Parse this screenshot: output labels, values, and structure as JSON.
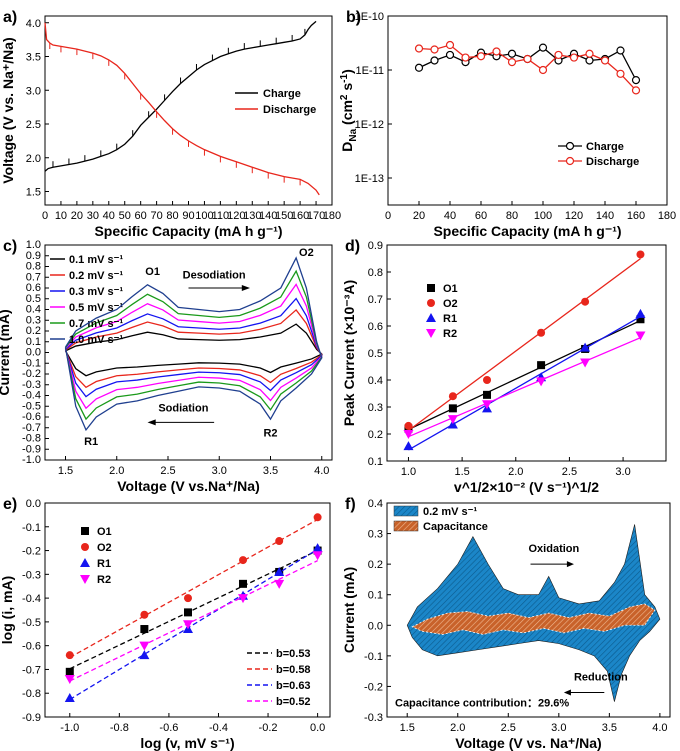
{
  "panels": {
    "a": "a)",
    "b": "b)",
    "c": "c)",
    "d": "d)",
    "e": "e)",
    "f": "f)"
  },
  "colors": {
    "black": "#000000",
    "red": "#e8261c",
    "blue": "#1414f0",
    "magenta": "#ff00ff",
    "green": "#1a9a1a",
    "orange": "#e06a1a",
    "fillblue": "#1b86c8",
    "fillorange": "#c8622a"
  },
  "chart_data": [
    {
      "id": "a",
      "type": "line",
      "xlabel": "Specific Capacity (mA h g⁻¹)",
      "ylabel": "Voltage (V vs. Na⁺/Na)",
      "xlim": [
        0,
        180
      ],
      "ylim": [
        1.3,
        4.1
      ],
      "xticks": [
        "0",
        "10",
        "20",
        "30",
        "40",
        "50",
        "60",
        "70",
        "80",
        "90",
        "100",
        "110",
        "120",
        "130",
        "140",
        "150",
        "160",
        "170",
        "180"
      ],
      "yticks": [
        "1.5",
        "2.0",
        "2.5",
        "3.0",
        "3.5",
        "4.0"
      ],
      "legend": {
        "position": "middle-right"
      },
      "series": [
        {
          "name": "Charge",
          "color": "#000000",
          "x": [
            0,
            2,
            5,
            10,
            15,
            20,
            25,
            30,
            35,
            40,
            45,
            50,
            55,
            60,
            65,
            70,
            75,
            80,
            85,
            90,
            95,
            100,
            105,
            110,
            115,
            120,
            125,
            130,
            135,
            140,
            145,
            150,
            155,
            160,
            163,
            165,
            167,
            170
          ],
          "y": [
            1.8,
            1.84,
            1.86,
            1.88,
            1.9,
            1.92,
            1.95,
            1.98,
            2.02,
            2.06,
            2.12,
            2.2,
            2.32,
            2.48,
            2.6,
            2.72,
            2.85,
            2.98,
            3.1,
            3.2,
            3.3,
            3.38,
            3.44,
            3.5,
            3.54,
            3.58,
            3.61,
            3.63,
            3.65,
            3.67,
            3.69,
            3.71,
            3.73,
            3.76,
            3.82,
            3.9,
            3.96,
            4.02
          ]
        },
        {
          "name": "Discharge",
          "color": "#e8261c",
          "x": [
            0,
            1,
            3,
            5,
            10,
            15,
            20,
            25,
            30,
            35,
            40,
            45,
            50,
            55,
            60,
            65,
            70,
            75,
            80,
            85,
            90,
            95,
            100,
            105,
            110,
            115,
            120,
            125,
            130,
            135,
            140,
            145,
            150,
            155,
            160,
            165,
            170,
            172
          ],
          "y": [
            4.0,
            3.75,
            3.7,
            3.67,
            3.65,
            3.63,
            3.61,
            3.58,
            3.55,
            3.51,
            3.45,
            3.37,
            3.25,
            3.1,
            2.95,
            2.82,
            2.68,
            2.55,
            2.43,
            2.33,
            2.25,
            2.18,
            2.12,
            2.07,
            2.02,
            1.98,
            1.94,
            1.9,
            1.86,
            1.82,
            1.78,
            1.75,
            1.72,
            1.7,
            1.68,
            1.62,
            1.52,
            1.45
          ]
        }
      ]
    },
    {
      "id": "b",
      "type": "line",
      "xlabel": "Specific Capacity (mA h g⁻¹)",
      "ylabel": "D_Na (cm² s⁻¹)",
      "ylabel_main": "D",
      "ylabel_sub": "Na",
      "ylabel_rest": "(cm",
      "ylabel_sup1": "2",
      "ylabel_s": " s",
      "ylabel_sup2": "-1",
      "ylabel_close": ")",
      "scale": "log",
      "xlim": [
        0,
        180
      ],
      "ylim_exp": [
        -13.5,
        -10
      ],
      "xticks": [
        "0",
        "20",
        "40",
        "60",
        "80",
        "100",
        "120",
        "140",
        "160",
        "180"
      ],
      "yticks": [
        "1E-13",
        "1E-12",
        "1E-11",
        "1E-10"
      ],
      "legend": {
        "position": "bottom-right"
      },
      "series": [
        {
          "name": "Charge",
          "color": "#000000",
          "x": [
            20,
            30,
            40,
            50,
            60,
            70,
            80,
            90,
            100,
            110,
            120,
            130,
            140,
            150,
            160
          ],
          "y": [
            1.1e-11,
            1.5e-11,
            1.9e-11,
            1.4e-11,
            2.1e-11,
            1.8e-11,
            2e-11,
            1.6e-11,
            2.6e-11,
            1.5e-11,
            2e-11,
            1.5e-11,
            1.6e-11,
            2.3e-11,
            6.5e-12
          ]
        },
        {
          "name": "Discharge",
          "color": "#e8261c",
          "x": [
            20,
            30,
            40,
            50,
            60,
            70,
            80,
            90,
            100,
            110,
            120,
            130,
            140,
            150,
            160
          ],
          "y": [
            2.5e-11,
            2.4e-11,
            2.9e-11,
            1.7e-11,
            1.8e-11,
            2.2e-11,
            1.4e-11,
            1.6e-11,
            1e-11,
            1.9e-11,
            1.7e-11,
            2e-11,
            1.5e-11,
            8.5e-12,
            4.2e-12
          ]
        }
      ]
    },
    {
      "id": "c",
      "type": "line",
      "xlabel": "Voltage (V vs.Na⁺/Na)",
      "ylabel": "Current (mA)",
      "xlim": [
        1.3,
        4.1
      ],
      "ylim": [
        -1.0,
        1.0
      ],
      "xticks": [
        "1.5",
        "2.0",
        "2.5",
        "3.0",
        "3.5",
        "4.0"
      ],
      "yticks": [
        "-1.0",
        "-0.9",
        "-0.8",
        "-0.7",
        "-0.6",
        "-0.5",
        "-0.4",
        "-0.3",
        "-0.2",
        "-0.1",
        "0.0",
        "0.1",
        "0.2",
        "0.3",
        "0.4",
        "0.5",
        "0.6",
        "0.7",
        "0.8",
        "0.9",
        "1.0"
      ],
      "legend": {
        "position": "top-left"
      },
      "annotations": [
        "O1",
        "O2",
        "R1",
        "R2",
        "Desodiation",
        "Sodiation"
      ],
      "series": [
        {
          "name": "0.1 mV s⁻¹",
          "color": "#000000",
          "scale": 0.3
        },
        {
          "name": "0.2 mV s⁻¹",
          "color": "#e8261c",
          "scale": 0.45
        },
        {
          "name": "0.3 mV s⁻¹",
          "color": "#1414f0",
          "scale": 0.57
        },
        {
          "name": "0.5 mV s⁻¹",
          "color": "#ff00ff",
          "scale": 0.72
        },
        {
          "name": "0.7 mV s⁻¹",
          "color": "#1a9a1a",
          "scale": 0.86
        },
        {
          "name": "1.0 mV s⁻¹",
          "color": "#1f3f8f",
          "scale": 1.0
        }
      ]
    },
    {
      "id": "d",
      "type": "scatter",
      "xlabel": "v^1/2×10⁻² (V s⁻¹)^1/2",
      "ylabel": "Peak Current (×10⁻³A)",
      "xlim": [
        0.8,
        3.4
      ],
      "ylim": [
        0.1,
        0.9
      ],
      "xticks": [
        "1.0",
        "1.5",
        "2.0",
        "2.5",
        "3.0"
      ],
      "yticks": [
        "0.1",
        "0.2",
        "0.3",
        "0.4",
        "0.5",
        "0.6",
        "0.7",
        "0.8",
        "0.9"
      ],
      "legend": {
        "position": "top-left"
      },
      "series": [
        {
          "name": "O1",
          "color": "#000000",
          "marker": "square",
          "x": [
            1.0,
            1.414,
            1.732,
            2.236,
            2.646,
            3.162
          ],
          "y": [
            0.22,
            0.295,
            0.345,
            0.455,
            0.515,
            0.625
          ]
        },
        {
          "name": "O2",
          "color": "#e8261c",
          "marker": "circle",
          "x": [
            1.0,
            1.414,
            1.732,
            2.236,
            2.646,
            3.162
          ],
          "y": [
            0.23,
            0.34,
            0.4,
            0.575,
            0.69,
            0.865
          ]
        },
        {
          "name": "R1",
          "color": "#1414f0",
          "marker": "triangle-up",
          "x": [
            1.0,
            1.414,
            1.732,
            2.236,
            2.646,
            3.162
          ],
          "y": [
            0.155,
            0.235,
            0.295,
            0.41,
            0.52,
            0.645
          ]
        },
        {
          "name": "R2",
          "color": "#ff00ff",
          "marker": "triangle-down",
          "x": [
            1.0,
            1.414,
            1.732,
            2.236,
            2.646,
            3.162
          ],
          "y": [
            0.2,
            0.255,
            0.31,
            0.395,
            0.465,
            0.565
          ]
        }
      ]
    },
    {
      "id": "e",
      "type": "scatter",
      "xlabel": "log (v, mV s⁻¹)",
      "ylabel": "log (i, mA)",
      "xlim": [
        -1.1,
        0.05
      ],
      "ylim": [
        -0.9,
        0.0
      ],
      "xticks": [
        "-1.0",
        "-0.8",
        "-0.6",
        "-0.4",
        "-0.2",
        "0.0"
      ],
      "yticks": [
        "-0.9",
        "-0.8",
        "-0.7",
        "-0.6",
        "-0.5",
        "-0.4",
        "-0.3",
        "-0.2",
        "-0.1",
        "0.0"
      ],
      "legend": {
        "position": "top-left"
      },
      "fit_legend": [
        "b=0.53",
        "b=0.58",
        "b=0.63",
        "b=0.52"
      ],
      "series": [
        {
          "name": "O1",
          "color": "#000000",
          "marker": "square",
          "x": [
            -1.0,
            -0.699,
            -0.523,
            -0.301,
            -0.155,
            0.0
          ],
          "y": [
            -0.71,
            -0.53,
            -0.46,
            -0.34,
            -0.29,
            -0.2
          ]
        },
        {
          "name": "O2",
          "color": "#e8261c",
          "marker": "circle",
          "x": [
            -1.0,
            -0.699,
            -0.523,
            -0.301,
            -0.155,
            0.0
          ],
          "y": [
            -0.64,
            -0.47,
            -0.4,
            -0.24,
            -0.16,
            -0.06
          ]
        },
        {
          "name": "R1",
          "color": "#1414f0",
          "marker": "triangle-up",
          "x": [
            -1.0,
            -0.699,
            -0.523,
            -0.301,
            -0.155,
            0.0
          ],
          "y": [
            -0.82,
            -0.64,
            -0.53,
            -0.39,
            -0.29,
            -0.19
          ]
        },
        {
          "name": "R2",
          "color": "#ff00ff",
          "marker": "triangle-down",
          "x": [
            -1.0,
            -0.699,
            -0.523,
            -0.301,
            -0.155,
            0.0
          ],
          "y": [
            -0.74,
            -0.6,
            -0.51,
            -0.4,
            -0.34,
            -0.22
          ]
        }
      ]
    },
    {
      "id": "f",
      "type": "area",
      "xlabel": "Voltage (V vs. Na⁺/Na)",
      "ylabel": "Current (mA)",
      "xlim": [
        1.3,
        4.1
      ],
      "ylim": [
        -0.3,
        0.4
      ],
      "xticks": [
        "1.5",
        "2.0",
        "2.5",
        "3.0",
        "3.5",
        "4.0"
      ],
      "yticks": [
        "-0.3",
        "-0.2",
        "-0.1",
        "0.0",
        "0.1",
        "0.2",
        "0.3",
        "0.4"
      ],
      "legend": {
        "position": "top-left"
      },
      "annotations": [
        "Oxidation",
        "Reduction",
        "Capacitance contribution：29.6%"
      ],
      "series": [
        {
          "name": "0.2 mV s⁻¹",
          "color": "#1b86c8"
        },
        {
          "name": "Capacitance",
          "color": "#c8622a"
        }
      ]
    }
  ]
}
